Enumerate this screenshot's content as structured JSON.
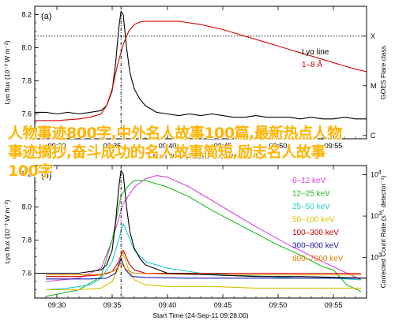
{
  "overlay_text": "人物事迹800字,中外名人故事100篇,最新热点人物事迹摘抄,奋斗成功的名人故事简短,励志名人故事100字",
  "chart_data": [
    {
      "type": "line",
      "panel_label": "(a)",
      "xlabel": "Start Time (24-Sep-11 09:28:00)",
      "xticks": [
        "09:30",
        "09:35",
        "09:40",
        "09:45",
        "09:50",
        "09:55"
      ],
      "xlim": [
        28,
        58
      ],
      "ylabel": "Lyα flux (10⁻³ W m⁻²)",
      "ylim": [
        7.45,
        8.25
      ],
      "yticks": [
        7.6,
        7.8,
        8.0,
        8.2
      ],
      "ytick_labels": [
        "7.6",
        "7.8",
        "8.0",
        "8.2"
      ],
      "right_axis_label": "GOES Flare class",
      "right_ticks": [
        {
          "label": "X",
          "y": 8.07
        },
        {
          "label": "M",
          "y": 7.77
        },
        {
          "label": "C",
          "y": 7.47
        }
      ],
      "ref_line_y": 8.07,
      "vline_x": 35.8,
      "legend_position": "top-right",
      "legend": [
        {
          "label": "Lyα line",
          "color": "#000000"
        },
        {
          "label": "1–8 Å",
          "color": "#d40000"
        }
      ],
      "series": [
        {
          "name": "Lyα line",
          "color": "#000000",
          "x": [
            28,
            29,
            30,
            31,
            32,
            33,
            34,
            34.5,
            35,
            35.3,
            35.6,
            35.8,
            36.0,
            36.3,
            36.6,
            37,
            37.5,
            38,
            39,
            40,
            41,
            42,
            43,
            44,
            45,
            46,
            47,
            48,
            49,
            50,
            51,
            52,
            53,
            54,
            55,
            56,
            57,
            58
          ],
          "y": [
            7.61,
            7.61,
            7.6,
            7.61,
            7.6,
            7.61,
            7.62,
            7.65,
            7.74,
            7.9,
            8.12,
            8.22,
            8.2,
            8.0,
            7.85,
            7.75,
            7.69,
            7.65,
            7.61,
            7.6,
            7.59,
            7.6,
            7.59,
            7.6,
            7.59,
            7.58,
            7.58,
            7.59,
            7.58,
            7.58,
            7.58,
            7.57,
            7.58,
            7.57,
            7.57,
            7.58,
            7.57,
            7.57
          ]
        },
        {
          "name": "1–8 Å",
          "color": "#d40000",
          "x": [
            28,
            30,
            32,
            33,
            34,
            34.5,
            35,
            35.5,
            36,
            36.5,
            37,
            37.5,
            38,
            39,
            40,
            41,
            42,
            43,
            44,
            45,
            46,
            47,
            48,
            49,
            50,
            51,
            52,
            53,
            54,
            55,
            56,
            57,
            58
          ],
          "y": [
            7.56,
            7.56,
            7.57,
            7.58,
            7.6,
            7.65,
            7.75,
            7.9,
            8.02,
            8.1,
            8.14,
            8.155,
            8.16,
            8.16,
            8.16,
            8.16,
            8.15,
            8.14,
            8.125,
            8.11,
            8.09,
            8.07,
            8.05,
            8.03,
            8.01,
            7.99,
            7.97,
            7.95,
            7.93,
            7.91,
            7.89,
            7.87,
            7.855
          ]
        }
      ]
    },
    {
      "type": "line",
      "panel_label": "(b)",
      "xlabel": "Start Time (24-Sep-11 09:28:00)",
      "xticks": [
        "09:30",
        "09:35",
        "09:40",
        "09:45",
        "09:50",
        "09:55"
      ],
      "xlim": [
        28,
        58
      ],
      "ylabel": "Lyα flux (10⁻³ W m⁻²)",
      "ylim": [
        7.45,
        8.25
      ],
      "yticks": [
        7.6,
        7.8,
        8.0,
        8.2
      ],
      "ytick_labels": [
        "7.6",
        "7.8",
        "8.0",
        "8.2"
      ],
      "right_axis_label": "Corrected Count Rate (s⁻¹ detector⁻¹)",
      "right_ticks": [
        {
          "label": "10^4",
          "base": "10",
          "exp": "4",
          "y": 8.195
        },
        {
          "label": "10^3",
          "base": "10",
          "exp": "3",
          "y": 7.945
        },
        {
          "label": "10^2",
          "base": "10",
          "exp": "2",
          "y": 7.695
        }
      ],
      "vline_x": 35.8,
      "legend_position": "top-right",
      "legend": [
        {
          "label": "6–12 keV",
          "color": "#e040e0"
        },
        {
          "label": "12–25 keV",
          "color": "#22bb22"
        },
        {
          "label": "25–50 keV",
          "color": "#22cccc"
        },
        {
          "label": "50–100 keV",
          "color": "#d8c000"
        },
        {
          "label": "100–300 keV",
          "color": "#cc0000"
        },
        {
          "label": "300–800 keV",
          "color": "#1a1aaa"
        },
        {
          "label": "800–7000 keV",
          "color": "#e08000"
        }
      ],
      "series": [
        {
          "name": "6–12 keV",
          "color": "#e040e0",
          "x": [
            29,
            32,
            34,
            35,
            36,
            37,
            38,
            39,
            40,
            42,
            45,
            48,
            51,
            54,
            57.5
          ],
          "y": [
            7.55,
            7.57,
            7.63,
            7.8,
            8.02,
            8.12,
            8.17,
            8.19,
            8.18,
            8.12,
            8.0,
            7.88,
            7.77,
            7.67,
            7.56
          ]
        },
        {
          "name": "12–25 keV",
          "color": "#22bb22",
          "x": [
            29,
            32,
            34,
            35,
            35.8,
            36.5,
            37,
            38,
            40,
            42,
            44,
            46,
            48,
            50,
            52,
            54,
            55,
            56.2,
            57.5
          ],
          "y": [
            7.46,
            7.5,
            7.58,
            7.8,
            8.07,
            8.13,
            8.16,
            8.16,
            8.12,
            8.06,
            7.98,
            7.91,
            7.84,
            7.77,
            7.71,
            7.64,
            7.62,
            7.53,
            7.49
          ]
        },
        {
          "name": "25–50 keV",
          "color": "#22cccc",
          "x": [
            29,
            31,
            33,
            34,
            35,
            35.5,
            36,
            36.5,
            37,
            38,
            40,
            43,
            46,
            49,
            52,
            55,
            57.5
          ],
          "y": [
            7.5,
            7.51,
            7.53,
            7.57,
            7.67,
            7.78,
            7.9,
            7.82,
            7.74,
            7.67,
            7.63,
            7.6,
            7.59,
            7.58,
            7.57,
            7.57,
            7.56
          ]
        },
        {
          "name": "50–100 keV",
          "color": "#d8c000",
          "x": [
            29,
            32,
            34,
            35,
            35.5,
            36,
            36.5,
            37,
            38,
            40,
            44,
            48,
            52,
            57.5
          ],
          "y": [
            7.5,
            7.5,
            7.51,
            7.55,
            7.62,
            7.72,
            7.62,
            7.56,
            7.53,
            7.52,
            7.52,
            7.51,
            7.51,
            7.51
          ]
        },
        {
          "name": "100–300 keV",
          "color": "#cc0000",
          "x": [
            29,
            32,
            34,
            35,
            35.5,
            36,
            36.5,
            37,
            38,
            42,
            47,
            52,
            57.5
          ],
          "y": [
            7.58,
            7.58,
            7.59,
            7.61,
            7.66,
            7.74,
            7.66,
            7.62,
            7.6,
            7.6,
            7.6,
            7.6,
            7.6
          ]
        },
        {
          "name": "300–800 keV",
          "color": "#1a1aaa",
          "x": [
            29,
            33,
            34.5,
            35.3,
            35.8,
            36.2,
            36.8,
            38,
            42,
            47,
            52,
            57.5
          ],
          "y": [
            7.565,
            7.565,
            7.57,
            7.6,
            7.69,
            7.62,
            7.58,
            7.575,
            7.57,
            7.57,
            7.57,
            7.57
          ]
        },
        {
          "name": "800–7000 keV",
          "color": "#e08000",
          "x": [
            29,
            33,
            34.5,
            35.3,
            35.8,
            36.3,
            37,
            40,
            45,
            50,
            57.5
          ],
          "y": [
            7.59,
            7.59,
            7.595,
            7.62,
            7.66,
            7.62,
            7.6,
            7.595,
            7.59,
            7.59,
            7.59
          ]
        },
        {
          "name": "",
          "color": "#000000",
          "x": [
            28,
            30,
            32,
            34,
            34.5,
            35,
            35.3,
            35.6,
            35.8,
            36.0,
            36.3,
            36.6,
            37,
            37.5,
            38,
            40,
            44,
            48,
            52,
            58
          ],
          "y": [
            7.6,
            7.6,
            7.6,
            7.62,
            7.65,
            7.74,
            7.9,
            8.12,
            8.22,
            8.2,
            8.0,
            7.85,
            7.75,
            7.69,
            7.65,
            7.6,
            7.59,
            7.58,
            7.58,
            7.57
          ]
        }
      ]
    }
  ]
}
